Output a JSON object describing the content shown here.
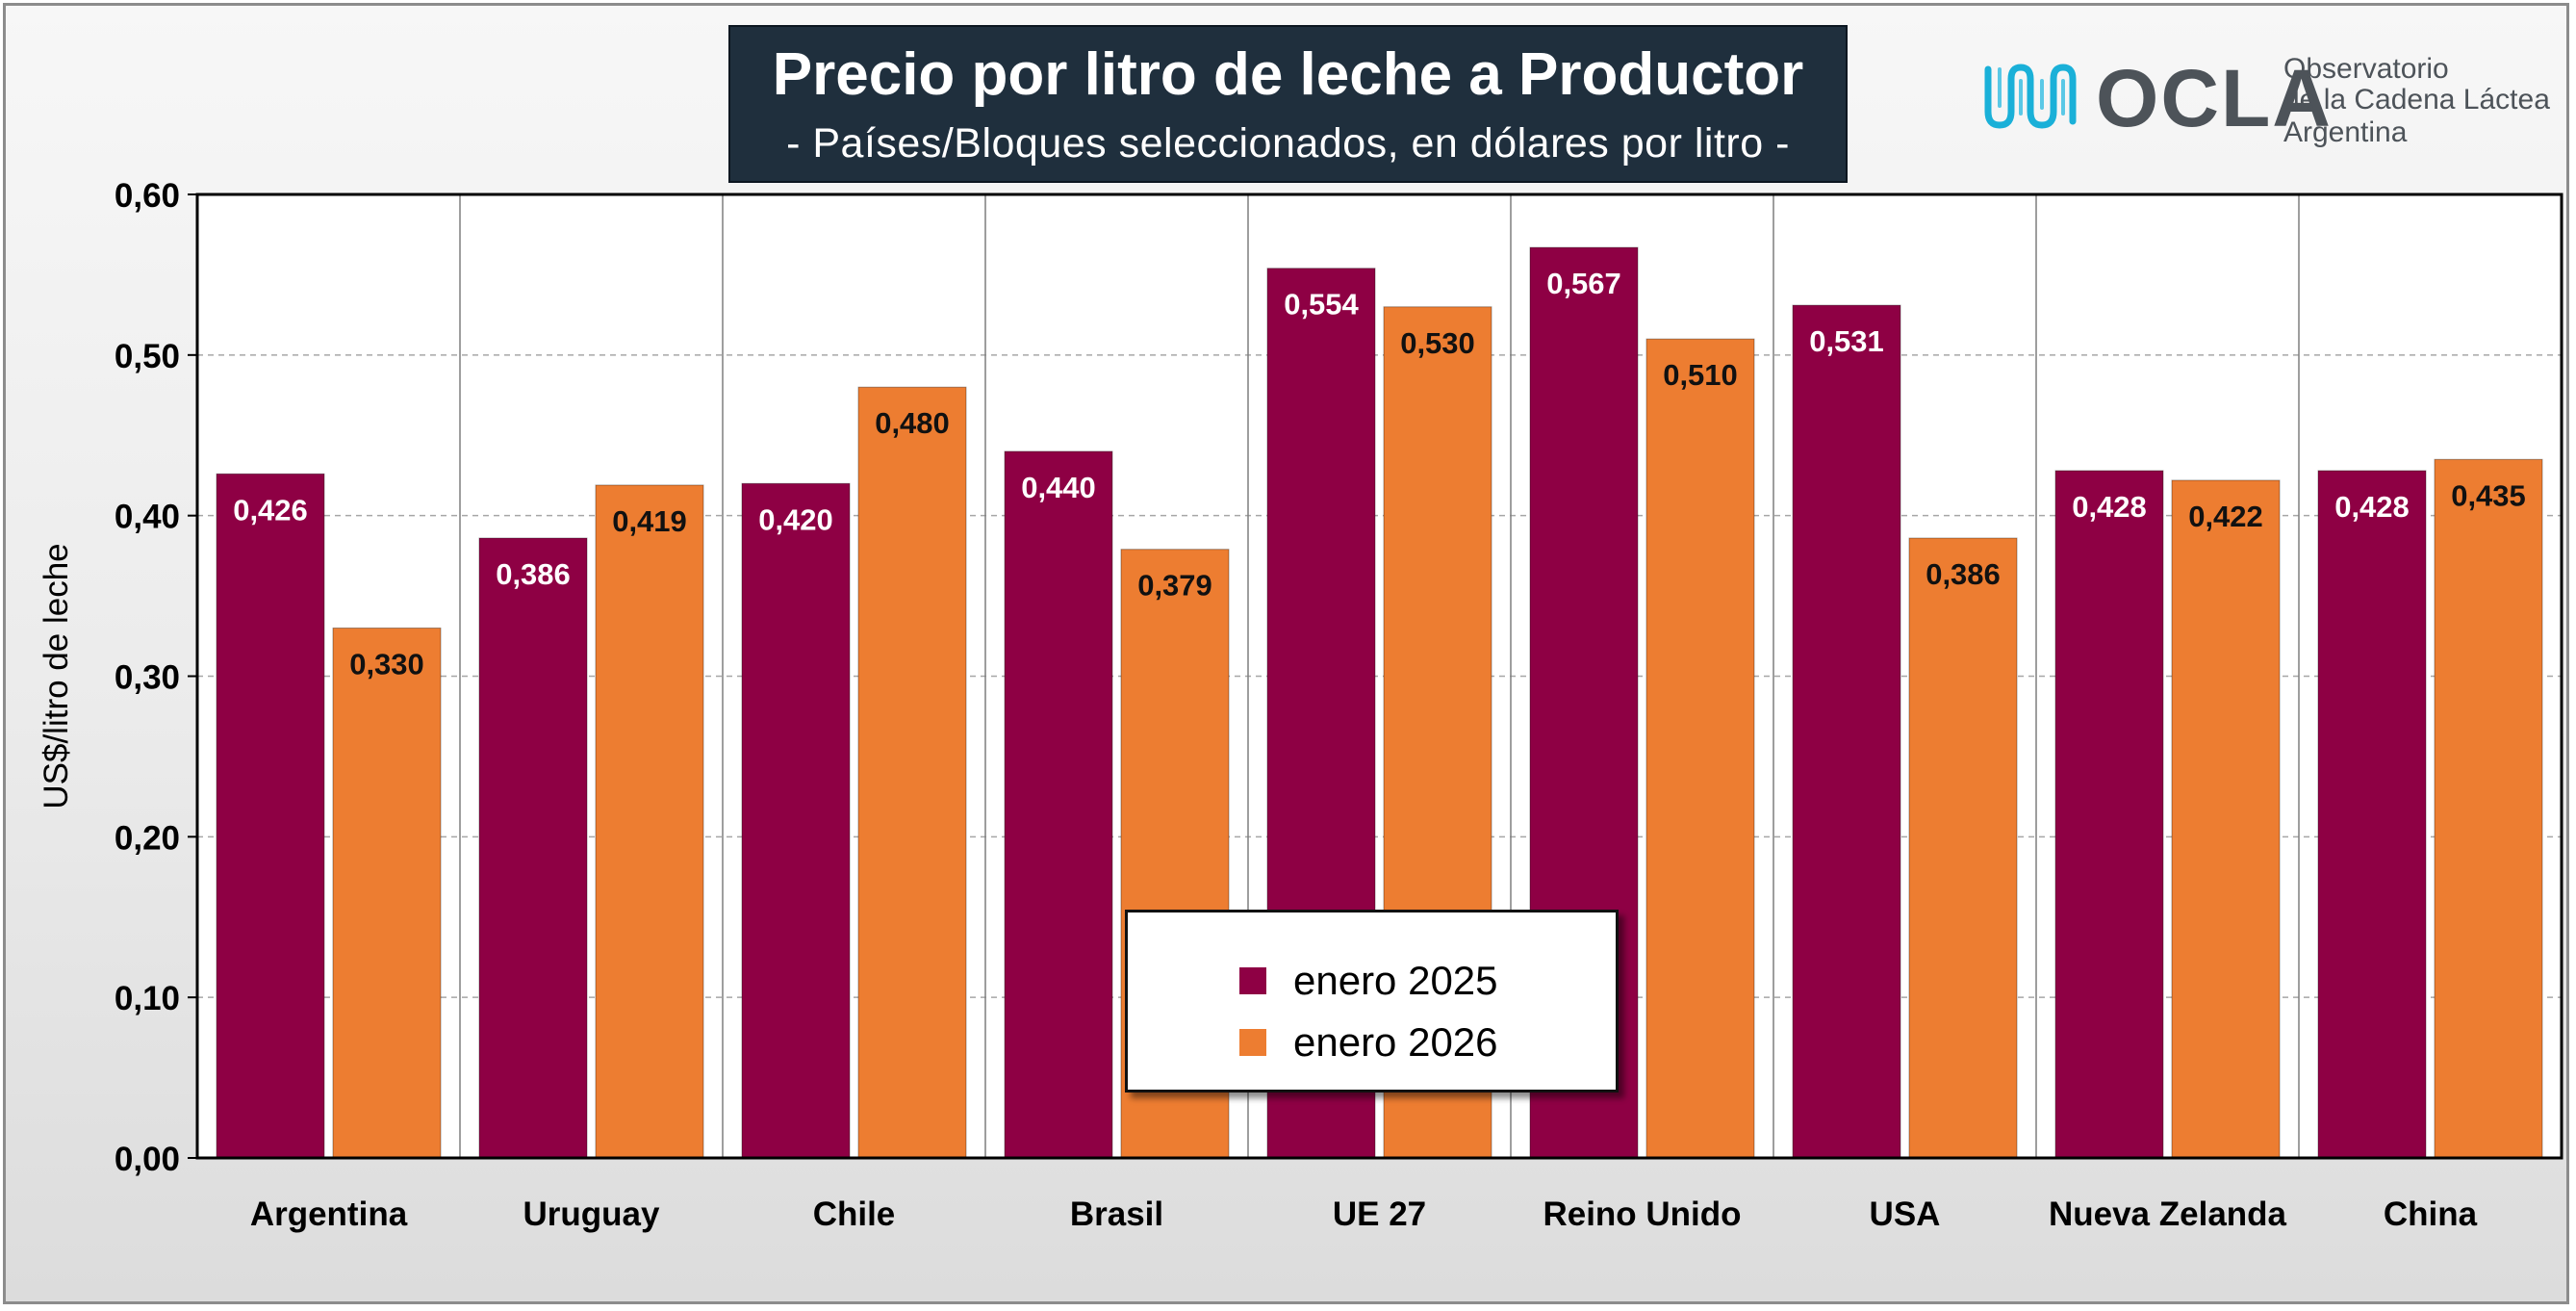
{
  "title": "Precio por litro de leche a Productor",
  "subtitle": "- Países/Bloques seleccionados, en dólares por litro -",
  "logo": {
    "icon": "ocla-wave-logo-icon",
    "wordmark": "OCLA",
    "line1": "Observatorio",
    "line2": "de la Cadena Láctea",
    "line3": "Argentina"
  },
  "colors": {
    "series1": "#8e0044",
    "series2": "#ed7d31",
    "logo_wave": "#1ab0d8"
  },
  "chart_data": {
    "type": "bar",
    "title": "Precio por litro de leche a Productor",
    "subtitle": "- Países/Bloques seleccionados, en dólares por litro -",
    "xlabel": "",
    "ylabel": "US$/litro de leche",
    "ylim": [
      0,
      0.6
    ],
    "yticks": [
      "0,00",
      "0,10",
      "0,20",
      "0,30",
      "0,40",
      "0,50",
      "0,60"
    ],
    "ytick_values": [
      0,
      0.1,
      0.2,
      0.3,
      0.4,
      0.5,
      0.6
    ],
    "grid": "horizontal dashed",
    "legend_position": "bottom-center",
    "categories": [
      "Argentina",
      "Uruguay",
      "Chile",
      "Brasil",
      "UE 27",
      "Reino Unido",
      "USA",
      "Nueva Zelanda",
      "China"
    ],
    "series": [
      {
        "name": "enero 2025",
        "values": [
          0.426,
          0.386,
          0.42,
          0.44,
          0.554,
          0.567,
          0.531,
          0.428,
          0.428
        ],
        "labels": [
          "0,426",
          "0,386",
          "0,420",
          "0,440",
          "0,554",
          "0,567",
          "0,531",
          "0,428",
          "0,428"
        ]
      },
      {
        "name": "enero 2026",
        "values": [
          0.33,
          0.419,
          0.48,
          0.379,
          0.53,
          0.51,
          0.386,
          0.422,
          0.435
        ],
        "labels": [
          "0,330",
          "0,419",
          "0,480",
          "0,379",
          "0,530",
          "0,510",
          "0,386",
          "0,422",
          "0,435"
        ]
      }
    ]
  }
}
